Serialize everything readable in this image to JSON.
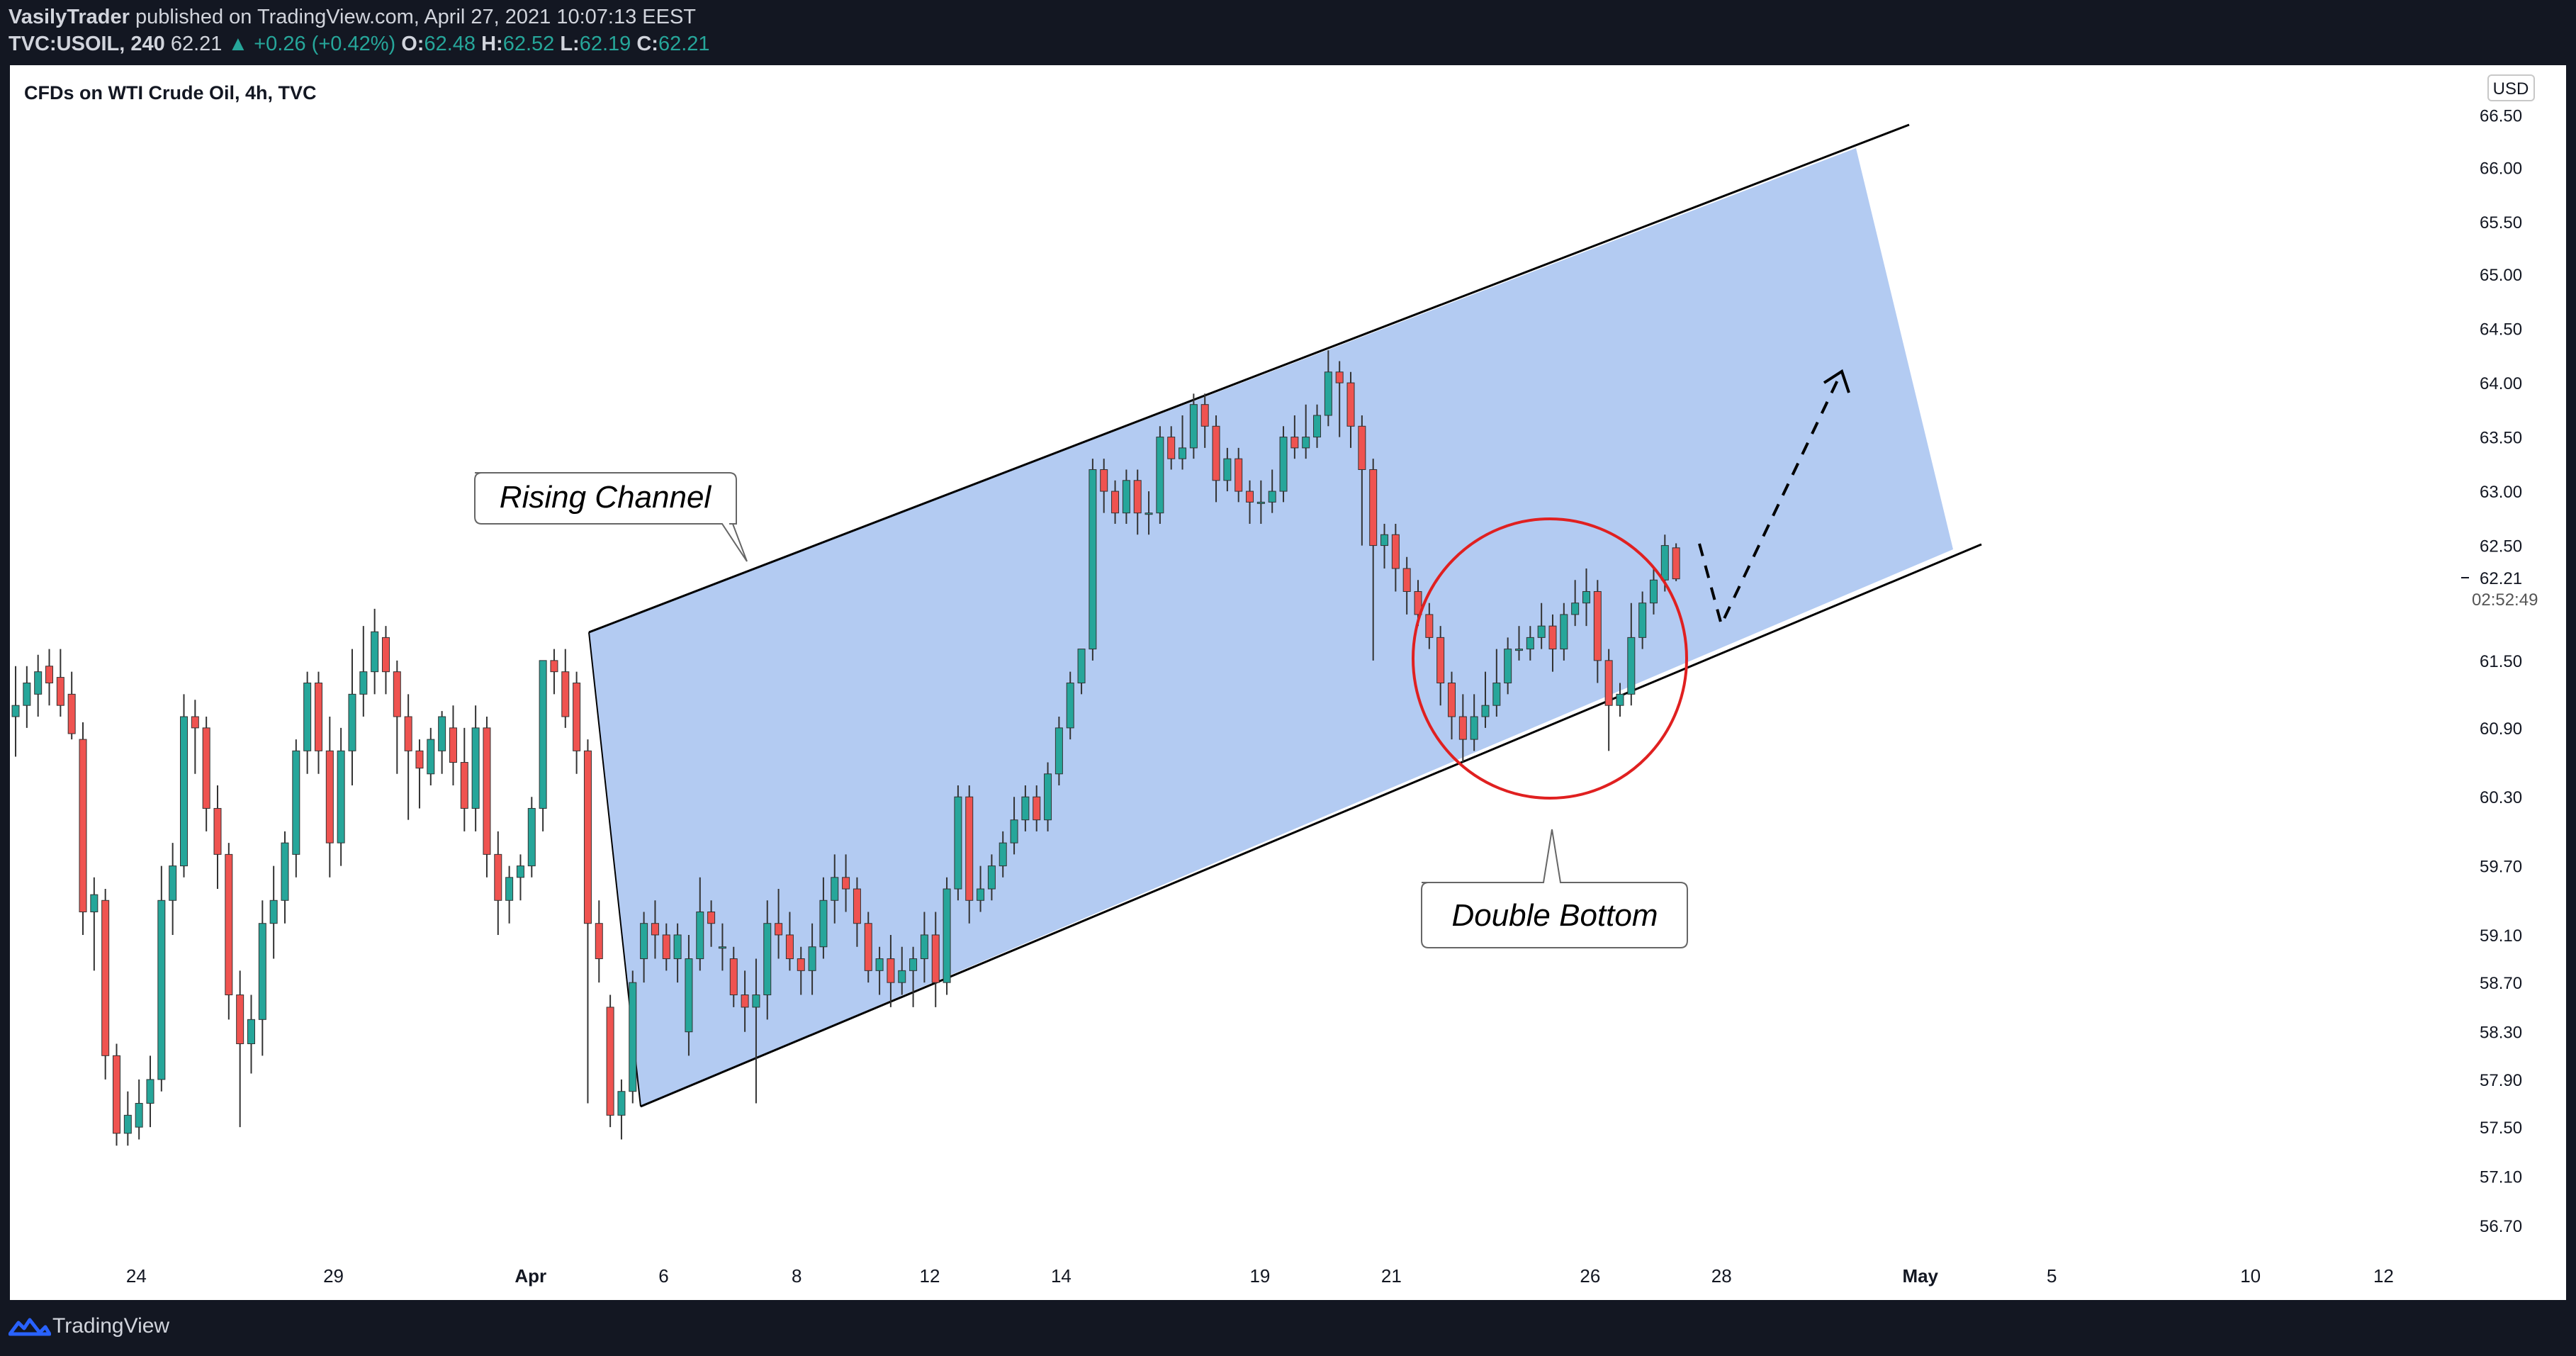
{
  "header": {
    "author": "VasilyTrader",
    "published_text": "published on TradingView.com, April 27, 2021 10:07:13 EEST",
    "symbol": "TVC:USOIL, 240",
    "last_price": "62.21",
    "change": "▲ +0.26 (+0.42%)",
    "o_label": "O:",
    "o_value": "62.48",
    "h_label": "H:",
    "h_value": "62.52",
    "l_label": "L:",
    "l_value": "62.19",
    "c_label": "C:",
    "c_value": "62.21"
  },
  "footer": {
    "brand": "TradingView"
  },
  "chart_data": {
    "type": "candlestick",
    "title": "CFDs on WTI Crude Oil, 4h, TVC",
    "currency": "USD",
    "y_ticks": [
      "66.50",
      "66.00",
      "65.50",
      "65.00",
      "64.50",
      "64.00",
      "63.50",
      "63.00",
      "62.50",
      "61.50",
      "60.90",
      "60.30",
      "59.70",
      "59.10",
      "58.70",
      "58.30",
      "57.90",
      "57.50",
      "57.10",
      "56.70"
    ],
    "x_ticks": [
      {
        "label": "24",
        "bold": false
      },
      {
        "label": "29",
        "bold": false
      },
      {
        "label": "Apr",
        "bold": true
      },
      {
        "label": "6",
        "bold": false
      },
      {
        "label": "8",
        "bold": false
      },
      {
        "label": "12",
        "bold": false
      },
      {
        "label": "14",
        "bold": false
      },
      {
        "label": "19",
        "bold": false
      },
      {
        "label": "21",
        "bold": false
      },
      {
        "label": "26",
        "bold": false
      },
      {
        "label": "28",
        "bold": false
      },
      {
        "label": "May",
        "bold": true
      },
      {
        "label": "5",
        "bold": false
      },
      {
        "label": "10",
        "bold": false
      },
      {
        "label": "12",
        "bold": false
      }
    ],
    "current_price": "62.21",
    "countdown": "02:52:49",
    "colors": {
      "up": "#26a69a",
      "down": "#ef5350",
      "channel": "#b3cbf2"
    },
    "annotations": [
      "Rising Channel",
      "Double Bottom"
    ],
    "candles": [
      {
        "o": 61.0,
        "c": 61.1,
        "h": 61.45,
        "l": 60.65
      },
      {
        "o": 61.1,
        "c": 61.3,
        "h": 61.45,
        "l": 60.9
      },
      {
        "o": 61.2,
        "c": 61.4,
        "h": 61.55,
        "l": 61.0
      },
      {
        "o": 61.45,
        "c": 61.3,
        "h": 61.6,
        "l": 61.1
      },
      {
        "o": 61.35,
        "c": 61.1,
        "h": 61.6,
        "l": 61.0
      },
      {
        "o": 61.2,
        "c": 60.85,
        "h": 61.4,
        "l": 60.8
      },
      {
        "o": 60.8,
        "c": 59.3,
        "h": 60.95,
        "l": 59.1
      },
      {
        "o": 59.3,
        "c": 59.45,
        "h": 59.6,
        "l": 58.8
      },
      {
        "o": 59.4,
        "c": 58.1,
        "h": 59.5,
        "l": 57.9
      },
      {
        "o": 58.1,
        "c": 57.45,
        "h": 58.2,
        "l": 57.35
      },
      {
        "o": 57.45,
        "c": 57.6,
        "h": 57.8,
        "l": 57.35
      },
      {
        "o": 57.5,
        "c": 57.7,
        "h": 57.9,
        "l": 57.4
      },
      {
        "o": 57.7,
        "c": 57.9,
        "h": 58.1,
        "l": 57.5
      },
      {
        "o": 57.9,
        "c": 59.4,
        "h": 59.7,
        "l": 57.8
      },
      {
        "o": 59.4,
        "c": 59.7,
        "h": 59.9,
        "l": 59.1
      },
      {
        "o": 59.7,
        "c": 61.0,
        "h": 61.2,
        "l": 59.6
      },
      {
        "o": 61.0,
        "c": 60.9,
        "h": 61.15,
        "l": 60.5
      },
      {
        "o": 60.9,
        "c": 60.2,
        "h": 61.0,
        "l": 60.0
      },
      {
        "o": 60.2,
        "c": 59.8,
        "h": 60.4,
        "l": 59.5
      },
      {
        "o": 59.8,
        "c": 58.6,
        "h": 59.9,
        "l": 58.4
      },
      {
        "o": 58.6,
        "c": 58.2,
        "h": 58.8,
        "l": 57.5
      },
      {
        "o": 58.2,
        "c": 58.4,
        "h": 58.6,
        "l": 57.95
      },
      {
        "o": 58.4,
        "c": 59.2,
        "h": 59.4,
        "l": 58.1
      },
      {
        "o": 59.2,
        "c": 59.4,
        "h": 59.7,
        "l": 58.9
      },
      {
        "o": 59.4,
        "c": 59.9,
        "h": 60.0,
        "l": 59.2
      },
      {
        "o": 59.8,
        "c": 60.7,
        "h": 60.8,
        "l": 59.6
      },
      {
        "o": 60.7,
        "c": 61.3,
        "h": 61.4,
        "l": 60.5
      },
      {
        "o": 61.3,
        "c": 60.7,
        "h": 61.4,
        "l": 60.5
      },
      {
        "o": 60.7,
        "c": 59.9,
        "h": 61.0,
        "l": 59.6
      },
      {
        "o": 59.9,
        "c": 60.7,
        "h": 60.9,
        "l": 59.7
      },
      {
        "o": 60.7,
        "c": 61.2,
        "h": 61.6,
        "l": 60.4
      },
      {
        "o": 61.2,
        "c": 61.4,
        "h": 61.8,
        "l": 61.0
      },
      {
        "o": 61.4,
        "c": 61.75,
        "h": 61.95,
        "l": 61.2
      },
      {
        "o": 61.7,
        "c": 61.4,
        "h": 61.8,
        "l": 61.2
      },
      {
        "o": 61.4,
        "c": 61.0,
        "h": 61.5,
        "l": 60.5
      },
      {
        "o": 61.0,
        "c": 60.7,
        "h": 61.2,
        "l": 60.1
      },
      {
        "o": 60.7,
        "c": 60.55,
        "h": 60.8,
        "l": 60.2
      },
      {
        "o": 60.5,
        "c": 60.8,
        "h": 60.9,
        "l": 60.4
      },
      {
        "o": 60.7,
        "c": 61.0,
        "h": 61.05,
        "l": 60.5
      },
      {
        "o": 60.9,
        "c": 60.6,
        "h": 61.1,
        "l": 60.4
      },
      {
        "o": 60.6,
        "c": 60.2,
        "h": 60.9,
        "l": 60.0
      },
      {
        "o": 60.2,
        "c": 60.9,
        "h": 61.1,
        "l": 60.0
      },
      {
        "o": 60.9,
        "c": 59.8,
        "h": 61.0,
        "l": 59.6
      },
      {
        "o": 59.8,
        "c": 59.4,
        "h": 60.0,
        "l": 59.1
      },
      {
        "o": 59.4,
        "c": 59.6,
        "h": 59.7,
        "l": 59.2
      },
      {
        "o": 59.6,
        "c": 59.7,
        "h": 59.8,
        "l": 59.4
      },
      {
        "o": 59.7,
        "c": 60.2,
        "h": 60.3,
        "l": 59.6
      },
      {
        "o": 60.2,
        "c": 61.5,
        "h": 61.5,
        "l": 60.0
      },
      {
        "o": 61.5,
        "c": 61.4,
        "h": 61.6,
        "l": 61.2
      },
      {
        "o": 61.4,
        "c": 61.0,
        "h": 61.6,
        "l": 60.9
      },
      {
        "o": 61.3,
        "c": 60.7,
        "h": 61.4,
        "l": 60.5
      },
      {
        "o": 60.7,
        "c": 59.2,
        "h": 60.8,
        "l": 57.7
      },
      {
        "o": 59.2,
        "c": 58.9,
        "h": 59.4,
        "l": 58.7
      },
      {
        "o": 58.5,
        "c": 57.6,
        "h": 58.6,
        "l": 57.5
      },
      {
        "o": 57.6,
        "c": 57.8,
        "h": 57.9,
        "l": 57.4
      },
      {
        "o": 57.8,
        "c": 58.7,
        "h": 58.8,
        "l": 57.7
      },
      {
        "o": 58.9,
        "c": 59.2,
        "h": 59.3,
        "l": 58.7
      },
      {
        "o": 59.2,
        "c": 59.1,
        "h": 59.4,
        "l": 58.9
      },
      {
        "o": 59.1,
        "c": 58.9,
        "h": 59.2,
        "l": 58.8
      },
      {
        "o": 58.9,
        "c": 59.1,
        "h": 59.2,
        "l": 58.7
      },
      {
        "o": 58.3,
        "c": 58.9,
        "h": 59.1,
        "l": 58.1
      },
      {
        "o": 58.9,
        "c": 59.3,
        "h": 59.6,
        "l": 58.8
      },
      {
        "o": 59.3,
        "c": 59.2,
        "h": 59.4,
        "l": 59.0
      },
      {
        "o": 59.0,
        "c": 59.0,
        "h": 59.2,
        "l": 58.8
      },
      {
        "o": 58.9,
        "c": 58.6,
        "h": 59.0,
        "l": 58.5
      },
      {
        "o": 58.6,
        "c": 58.5,
        "h": 58.8,
        "l": 58.3
      },
      {
        "o": 58.5,
        "c": 58.6,
        "h": 58.9,
        "l": 57.7
      },
      {
        "o": 58.6,
        "c": 59.2,
        "h": 59.4,
        "l": 58.4
      },
      {
        "o": 59.2,
        "c": 59.1,
        "h": 59.5,
        "l": 58.9
      },
      {
        "o": 59.1,
        "c": 58.9,
        "h": 59.3,
        "l": 58.8
      },
      {
        "o": 58.9,
        "c": 58.8,
        "h": 59.0,
        "l": 58.6
      },
      {
        "o": 58.8,
        "c": 59.0,
        "h": 59.2,
        "l": 58.6
      },
      {
        "o": 59.0,
        "c": 59.4,
        "h": 59.6,
        "l": 58.9
      },
      {
        "o": 59.4,
        "c": 59.6,
        "h": 59.8,
        "l": 59.2
      },
      {
        "o": 59.6,
        "c": 59.5,
        "h": 59.8,
        "l": 59.3
      },
      {
        "o": 59.5,
        "c": 59.2,
        "h": 59.6,
        "l": 59.0
      },
      {
        "o": 59.2,
        "c": 58.8,
        "h": 59.3,
        "l": 58.7
      },
      {
        "o": 58.8,
        "c": 58.9,
        "h": 59.0,
        "l": 58.6
      },
      {
        "o": 58.9,
        "c": 58.7,
        "h": 59.1,
        "l": 58.5
      },
      {
        "o": 58.7,
        "c": 58.8,
        "h": 59.0,
        "l": 58.6
      },
      {
        "o": 58.8,
        "c": 58.9,
        "h": 59.0,
        "l": 58.5
      },
      {
        "o": 58.9,
        "c": 59.1,
        "h": 59.3,
        "l": 58.7
      },
      {
        "o": 59.1,
        "c": 58.7,
        "h": 59.3,
        "l": 58.5
      },
      {
        "o": 58.7,
        "c": 59.5,
        "h": 59.6,
        "l": 58.6
      },
      {
        "o": 59.5,
        "c": 60.3,
        "h": 60.4,
        "l": 59.4
      },
      {
        "o": 60.3,
        "c": 59.4,
        "h": 60.4,
        "l": 59.2
      },
      {
        "o": 59.4,
        "c": 59.5,
        "h": 59.7,
        "l": 59.3
      },
      {
        "o": 59.5,
        "c": 59.7,
        "h": 59.8,
        "l": 59.4
      },
      {
        "o": 59.7,
        "c": 59.9,
        "h": 60.0,
        "l": 59.6
      },
      {
        "o": 59.9,
        "c": 60.1,
        "h": 60.3,
        "l": 59.8
      },
      {
        "o": 60.1,
        "c": 60.3,
        "h": 60.4,
        "l": 60.0
      },
      {
        "o": 60.3,
        "c": 60.1,
        "h": 60.4,
        "l": 60.0
      },
      {
        "o": 60.1,
        "c": 60.5,
        "h": 60.6,
        "l": 60.0
      },
      {
        "o": 60.5,
        "c": 60.9,
        "h": 61.0,
        "l": 60.4
      },
      {
        "o": 60.9,
        "c": 61.3,
        "h": 61.4,
        "l": 60.8
      },
      {
        "o": 61.3,
        "c": 61.6,
        "h": 61.6,
        "l": 61.2
      },
      {
        "o": 61.6,
        "c": 63.2,
        "h": 63.3,
        "l": 61.5
      },
      {
        "o": 63.2,
        "c": 63.0,
        "h": 63.3,
        "l": 62.8
      },
      {
        "o": 63.0,
        "c": 62.8,
        "h": 63.1,
        "l": 62.7
      },
      {
        "o": 62.8,
        "c": 63.1,
        "h": 63.2,
        "l": 62.7
      },
      {
        "o": 63.1,
        "c": 62.8,
        "h": 63.2,
        "l": 62.6
      },
      {
        "o": 62.8,
        "c": 62.8,
        "h": 63.0,
        "l": 62.6
      },
      {
        "o": 62.8,
        "c": 63.5,
        "h": 63.6,
        "l": 62.7
      },
      {
        "o": 63.5,
        "c": 63.3,
        "h": 63.6,
        "l": 63.2
      },
      {
        "o": 63.3,
        "c": 63.4,
        "h": 63.7,
        "l": 63.2
      },
      {
        "o": 63.4,
        "c": 63.8,
        "h": 63.9,
        "l": 63.3
      },
      {
        "o": 63.8,
        "c": 63.6,
        "h": 63.9,
        "l": 63.4
      },
      {
        "o": 63.6,
        "c": 63.1,
        "h": 63.7,
        "l": 62.9
      },
      {
        "o": 63.1,
        "c": 63.3,
        "h": 63.4,
        "l": 63.0
      },
      {
        "o": 63.3,
        "c": 63.0,
        "h": 63.4,
        "l": 62.9
      },
      {
        "o": 63.0,
        "c": 62.9,
        "h": 63.1,
        "l": 62.7
      },
      {
        "o": 62.9,
        "c": 62.9,
        "h": 63.1,
        "l": 62.7
      },
      {
        "o": 62.9,
        "c": 63.0,
        "h": 63.2,
        "l": 62.8
      },
      {
        "o": 63.0,
        "c": 63.5,
        "h": 63.6,
        "l": 62.9
      },
      {
        "o": 63.5,
        "c": 63.4,
        "h": 63.7,
        "l": 63.3
      },
      {
        "o": 63.4,
        "c": 63.5,
        "h": 63.8,
        "l": 63.3
      },
      {
        "o": 63.5,
        "c": 63.7,
        "h": 63.8,
        "l": 63.4
      },
      {
        "o": 63.7,
        "c": 64.1,
        "h": 64.3,
        "l": 63.6
      },
      {
        "o": 64.1,
        "c": 64.0,
        "h": 64.2,
        "l": 63.5
      },
      {
        "o": 64.0,
        "c": 63.6,
        "h": 64.1,
        "l": 63.4
      },
      {
        "o": 63.6,
        "c": 63.2,
        "h": 63.7,
        "l": 62.5
      },
      {
        "o": 63.2,
        "c": 62.5,
        "h": 63.3,
        "l": 61.5
      },
      {
        "o": 62.5,
        "c": 62.6,
        "h": 62.7,
        "l": 62.3
      },
      {
        "o": 62.6,
        "c": 62.3,
        "h": 62.7,
        "l": 62.1
      },
      {
        "o": 62.3,
        "c": 62.1,
        "h": 62.4,
        "l": 61.9
      },
      {
        "o": 62.1,
        "c": 61.9,
        "h": 62.2,
        "l": 61.8
      },
      {
        "o": 61.9,
        "c": 61.7,
        "h": 62.0,
        "l": 61.6
      },
      {
        "o": 61.7,
        "c": 61.3,
        "h": 61.8,
        "l": 61.1
      },
      {
        "o": 61.3,
        "c": 61.0,
        "h": 61.4,
        "l": 60.8
      },
      {
        "o": 61.0,
        "c": 60.8,
        "h": 61.2,
        "l": 60.6
      },
      {
        "o": 60.8,
        "c": 61.0,
        "h": 61.2,
        "l": 60.7
      },
      {
        "o": 61.0,
        "c": 61.1,
        "h": 61.4,
        "l": 60.9
      },
      {
        "o": 61.1,
        "c": 61.3,
        "h": 61.6,
        "l": 61.0
      },
      {
        "o": 61.3,
        "c": 61.6,
        "h": 61.7,
        "l": 61.2
      },
      {
        "o": 61.6,
        "c": 61.6,
        "h": 61.8,
        "l": 61.5
      },
      {
        "o": 61.6,
        "c": 61.7,
        "h": 61.8,
        "l": 61.5
      },
      {
        "o": 61.7,
        "c": 61.8,
        "h": 62.0,
        "l": 61.6
      },
      {
        "o": 61.8,
        "c": 61.6,
        "h": 61.9,
        "l": 61.4
      },
      {
        "o": 61.6,
        "c": 61.9,
        "h": 62.0,
        "l": 61.5
      },
      {
        "o": 61.9,
        "c": 62.0,
        "h": 62.2,
        "l": 61.8
      },
      {
        "o": 62.0,
        "c": 62.1,
        "h": 62.3,
        "l": 61.8
      },
      {
        "o": 62.1,
        "c": 61.5,
        "h": 62.2,
        "l": 61.3
      },
      {
        "o": 61.5,
        "c": 61.1,
        "h": 61.6,
        "l": 60.7
      },
      {
        "o": 61.1,
        "c": 61.2,
        "h": 61.3,
        "l": 61.0
      },
      {
        "o": 61.2,
        "c": 61.7,
        "h": 62.0,
        "l": 61.1
      },
      {
        "o": 61.7,
        "c": 62.0,
        "h": 62.1,
        "l": 61.6
      },
      {
        "o": 62.0,
        "c": 62.2,
        "h": 62.3,
        "l": 61.9
      },
      {
        "o": 62.2,
        "c": 62.5,
        "h": 62.6,
        "l": 62.1
      },
      {
        "o": 62.48,
        "c": 62.21,
        "h": 62.52,
        "l": 62.19
      }
    ]
  }
}
